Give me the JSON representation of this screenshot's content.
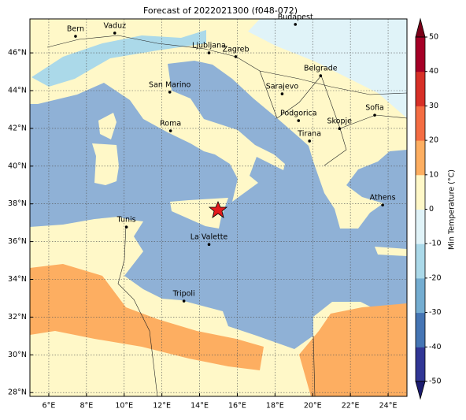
{
  "title": "Forecast of 2022021300 (f048-072)",
  "map": {
    "xlim": [
      5,
      25
    ],
    "ylim": [
      27.8,
      47.8
    ],
    "xticks": [
      {
        "value": 6,
        "label": "6°E"
      },
      {
        "value": 8,
        "label": "8°E"
      },
      {
        "value": 10,
        "label": "10°E"
      },
      {
        "value": 12,
        "label": "12°E"
      },
      {
        "value": 14,
        "label": "14°E"
      },
      {
        "value": 16,
        "label": "16°E"
      },
      {
        "value": 18,
        "label": "18°E"
      },
      {
        "value": 20,
        "label": "20°E"
      },
      {
        "value": 22,
        "label": "22°E"
      },
      {
        "value": 24,
        "label": "24°E"
      }
    ],
    "yticks": [
      {
        "value": 28,
        "label": "28°N"
      },
      {
        "value": 30,
        "label": "30°N"
      },
      {
        "value": 32,
        "label": "32°N"
      },
      {
        "value": 34,
        "label": "34°N"
      },
      {
        "value": 36,
        "label": "36°N"
      },
      {
        "value": 38,
        "label": "38°N"
      },
      {
        "value": 40,
        "label": "40°N"
      },
      {
        "value": 42,
        "label": "42°N"
      },
      {
        "value": 44,
        "label": "44°N"
      },
      {
        "value": 46,
        "label": "46°N"
      }
    ],
    "grid": true,
    "cities": [
      {
        "name": "Bern",
        "lon": 7.42,
        "lat": 46.88
      },
      {
        "name": "Vaduz",
        "lon": 9.5,
        "lat": 47.05
      },
      {
        "name": "Budapest",
        "lon": 19.08,
        "lat": 47.51
      },
      {
        "name": "Ljubljana",
        "lon": 14.5,
        "lat": 46.0
      },
      {
        "name": "Zagreb",
        "lon": 15.92,
        "lat": 45.8
      },
      {
        "name": "Belgrade",
        "lon": 20.42,
        "lat": 44.79
      },
      {
        "name": "San Marino",
        "lon": 12.42,
        "lat": 43.92
      },
      {
        "name": "Sarajevo",
        "lon": 18.38,
        "lat": 43.83
      },
      {
        "name": "Sofia",
        "lon": 23.29,
        "lat": 42.7
      },
      {
        "name": "Podgorica",
        "lon": 19.25,
        "lat": 42.41
      },
      {
        "name": "Skopje",
        "lon": 21.42,
        "lat": 41.99
      },
      {
        "name": "Roma",
        "lon": 12.46,
        "lat": 41.87
      },
      {
        "name": "Tirana",
        "lon": 19.83,
        "lat": 41.33
      },
      {
        "name": "Athens",
        "lon": 23.71,
        "lat": 37.94
      },
      {
        "name": "Tunis",
        "lon": 10.12,
        "lat": 36.77
      },
      {
        "name": "La Valette",
        "lon": 14.5,
        "lat": 35.85
      },
      {
        "name": "Tripoli",
        "lon": 13.17,
        "lat": 32.85
      }
    ]
  },
  "colorbar": {
    "label": "Min Temperature (°C)",
    "lim": [
      -50,
      50
    ],
    "ticks": [
      -50,
      -40,
      -30,
      -20,
      -10,
      0,
      10,
      20,
      30,
      40,
      50
    ],
    "colors": [
      "#313695",
      "#4575b4",
      "#74add1",
      "#abd9e9",
      "#e0f3f8",
      "#fff8c8",
      "#fdae61",
      "#f46d43",
      "#d73027",
      "#a50026"
    ],
    "under": "#1c1c70",
    "over": "#7a0018"
  }
}
